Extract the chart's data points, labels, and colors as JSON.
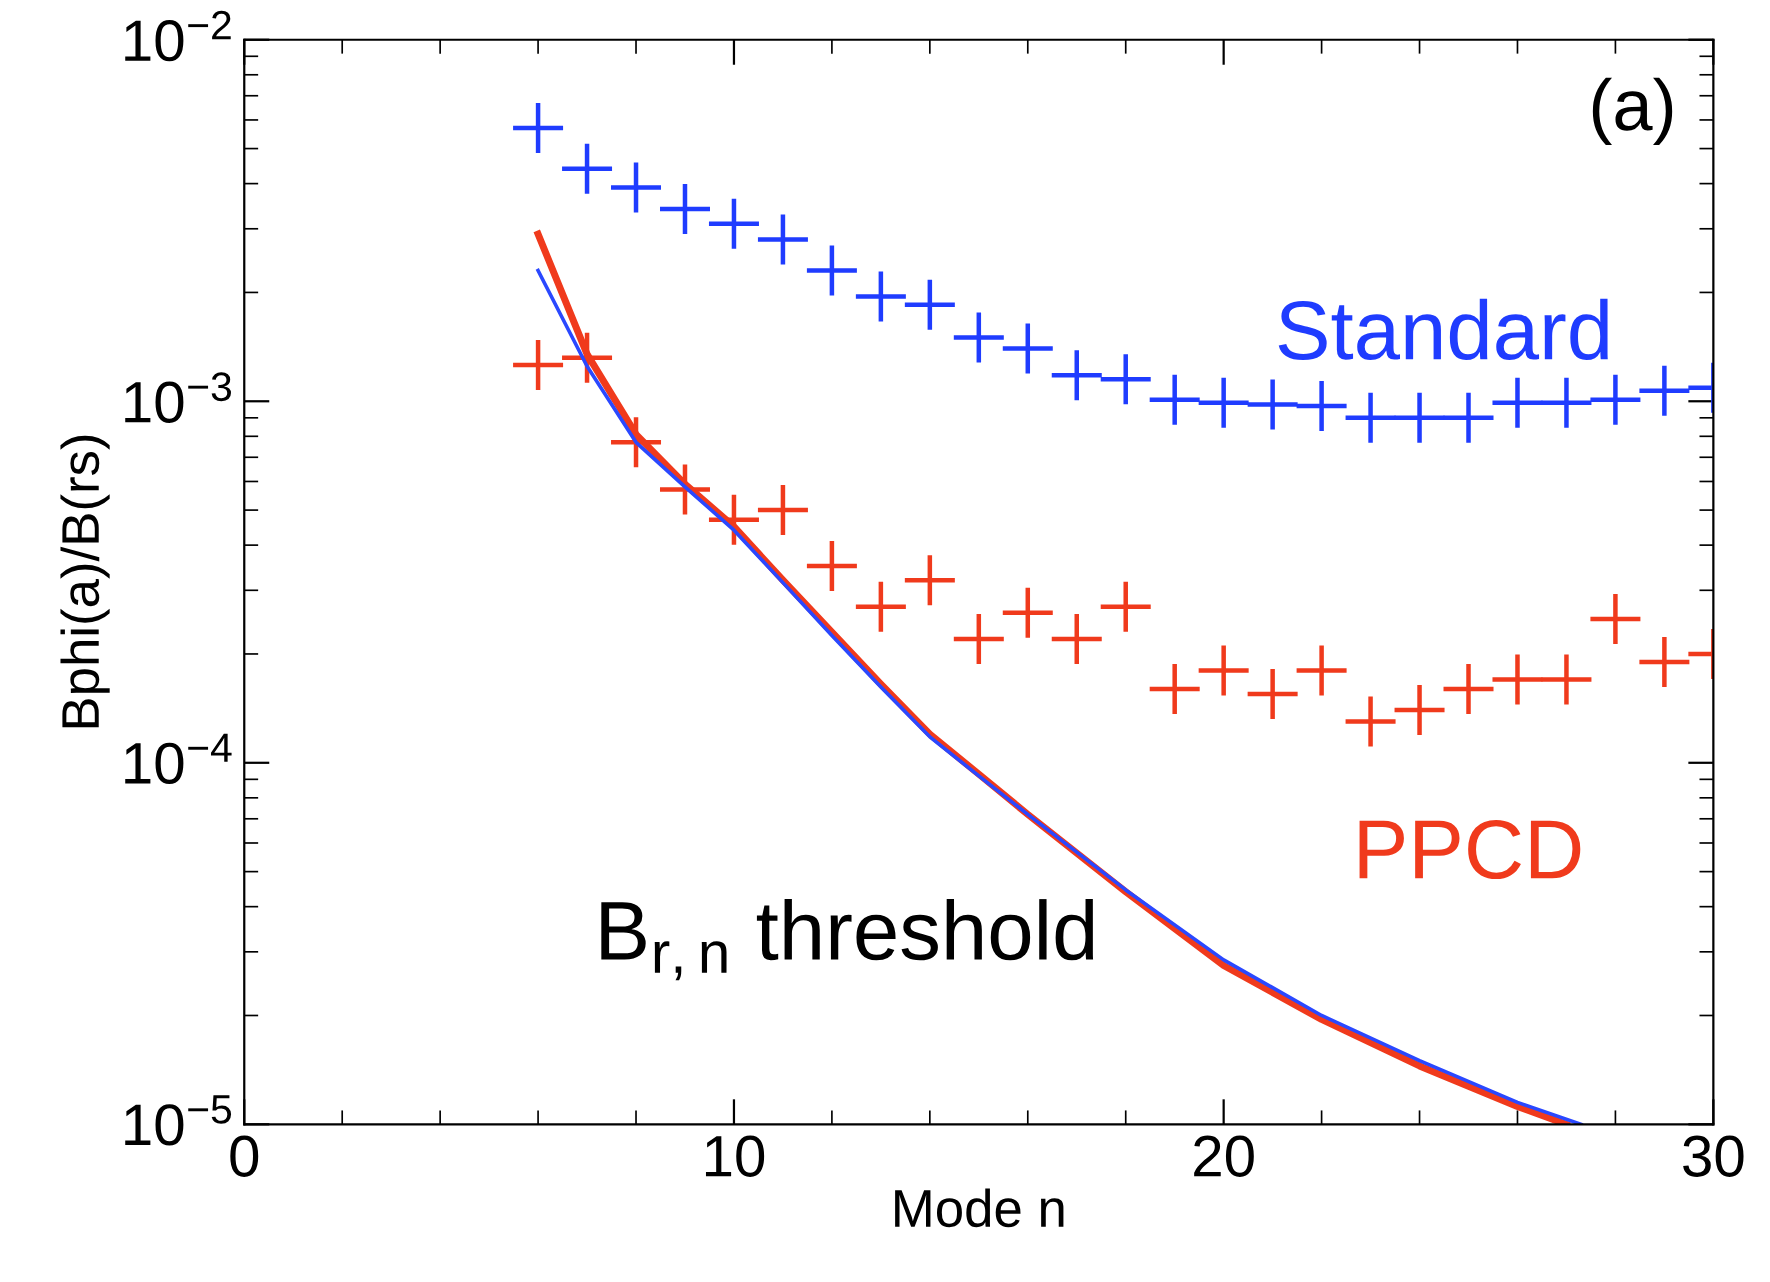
{
  "chart_data": {
    "type": "scatter",
    "xlabel": "Mode n",
    "ylabel": "Bphi(a)/B(rs)",
    "log": "y",
    "marker": "cross",
    "grid": false,
    "legend": "right",
    "xlim": [
      0,
      30
    ],
    "xticks": [
      0,
      10,
      20,
      30
    ],
    "ylim": [
      1e-05,
      0.01
    ],
    "yticks": [
      {
        "value": 1e-05,
        "label": "10$^{−5}$"
      },
      {
        "value": 0.0001,
        "label": "10$^{−4}$"
      },
      {
        "value": 0.001,
        "label": "10$^{−3}$"
      },
      {
        "value": 0.01,
        "label": "10$^{−2}$"
      }
    ],
    "series": [
      {
        "name": "Standard",
        "color": "#1f3cff",
        "x": [
          6,
          7,
          8,
          9,
          10,
          11,
          12,
          13,
          14,
          15,
          16,
          17,
          18,
          19,
          20,
          21,
          22,
          23,
          24,
          25,
          26,
          27,
          28,
          29,
          30
        ],
        "values": [
          0.0057,
          0.0044,
          0.0039,
          0.0034,
          0.0031,
          0.0028,
          0.0023,
          0.00195,
          0.00185,
          0.0015,
          0.0014,
          0.00118,
          0.00115,
          0.00101,
          0.00099,
          0.00098,
          0.00097,
          0.0009,
          0.0009,
          0.0009,
          0.00099,
          0.00099,
          0.00101,
          0.00107,
          0.00109
        ]
      },
      {
        "name": "PPCD",
        "color": "#f03a1c",
        "x": [
          6,
          7,
          8,
          9,
          10,
          11,
          12,
          13,
          14,
          15,
          16,
          17,
          18,
          19,
          20,
          21,
          22,
          23,
          24,
          25,
          26,
          27,
          28,
          29,
          30
        ],
        "values": [
          0.00126,
          0.00132,
          0.00077,
          0.00057,
          0.00047,
          0.0005,
          0.00035,
          0.00027,
          0.00032,
          0.00022,
          0.00026,
          0.00022,
          0.00027,
          0.00016,
          0.00018,
          0.000155,
          0.00018,
          0.00013,
          0.00014,
          0.00016,
          0.00017,
          0.00017,
          0.00025,
          0.00019,
          0.0002
        ]
      },
      {
        "type": "line",
        "marker": "none",
        "color": "#f03a1c",
        "x": [
          6,
          7,
          8,
          9,
          10,
          11,
          12,
          13,
          14,
          15,
          16,
          18,
          20,
          22,
          24,
          26,
          27
        ],
        "values": [
          0.0029,
          0.00135,
          0.00081,
          0.00059,
          0.00045,
          0.00032,
          0.00023,
          0.000165,
          0.00012,
          9.3e-05,
          7.2e-05,
          4.4e-05,
          2.75e-05,
          1.95e-05,
          1.45e-05,
          1.12e-05,
          1e-05
        ]
      },
      {
        "type": "line",
        "marker": "none",
        "color": "#2a48ff",
        "x": [
          6,
          7,
          8,
          9,
          10,
          11,
          12,
          13,
          14,
          15,
          16,
          18,
          20,
          22,
          24,
          26,
          27.3
        ],
        "values": [
          0.0023,
          0.00125,
          0.00077,
          0.00058,
          0.00044,
          0.000315,
          0.000225,
          0.000162,
          0.000118,
          9.2e-05,
          7.2e-05,
          4.45e-05,
          2.85e-05,
          2e-05,
          1.5e-05,
          1.15e-05,
          1e-05
        ]
      }
    ],
    "annotations": [
      "(a)",
      "B$_{r,n}$ threshold"
    ]
  }
}
